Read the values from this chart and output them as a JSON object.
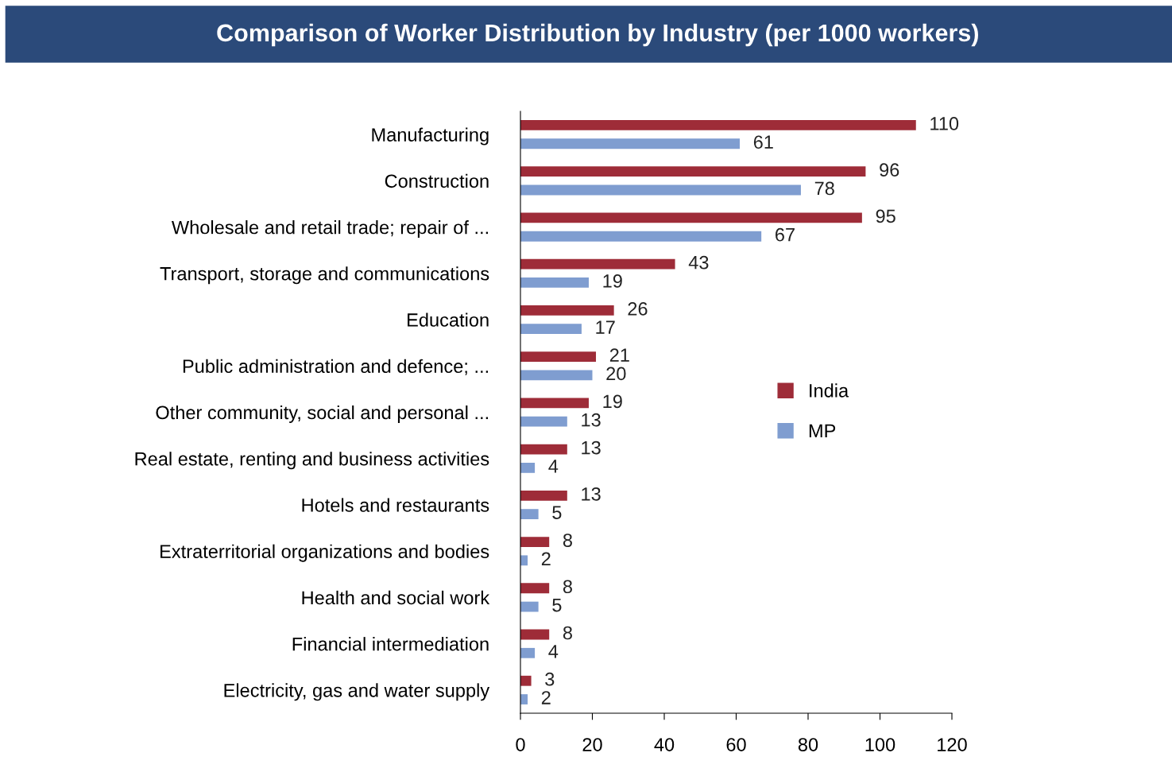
{
  "chart_data": {
    "type": "bar",
    "orientation": "horizontal",
    "title": "Comparison of Worker Distribution by Industry (per 1000 workers)",
    "categories": [
      "Manufacturing",
      "Construction",
      "Wholesale and retail trade; repair of ...",
      "Transport, storage and communications",
      "Education",
      "Public administration and defence; ...",
      "Other community, social and personal ...",
      "Real estate, renting and business activities",
      "Hotels and restaurants",
      "Extraterritorial organizations and bodies",
      "Health and social work",
      "Financial intermediation",
      "Electricity, gas and water supply"
    ],
    "series": [
      {
        "name": "India",
        "color": "#9e2c38",
        "values": [
          110,
          96,
          95,
          43,
          26,
          21,
          19,
          13,
          13,
          8,
          8,
          8,
          3
        ]
      },
      {
        "name": "MP",
        "color": "#7f9dd0",
        "values": [
          61,
          78,
          67,
          19,
          17,
          20,
          13,
          4,
          5,
          2,
          5,
          4,
          2
        ]
      }
    ],
    "xlim": [
      0,
      120
    ],
    "xticks": [
      0,
      20,
      40,
      60,
      80,
      100,
      120
    ],
    "data_labels": true,
    "legend": "right",
    "grid": false
  }
}
